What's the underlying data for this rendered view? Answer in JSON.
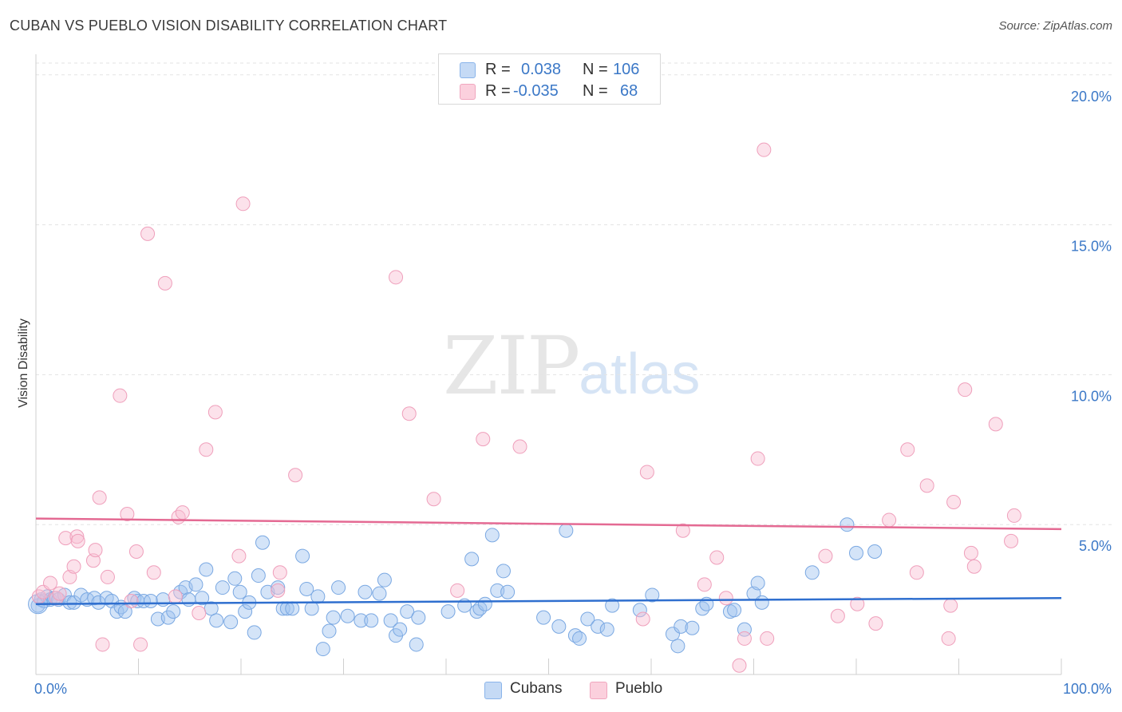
{
  "header": {
    "title": "CUBAN VS PUEBLO VISION DISABILITY CORRELATION CHART",
    "source": "Source: ZipAtlas.com"
  },
  "watermark": {
    "zip": "ZIP",
    "atlas": "atlas"
  },
  "legend": {
    "rows": [
      {
        "r_label": "R =",
        "r_value": "0.038",
        "n_label": "N =",
        "n_value": "106",
        "color": "#8ab4ea",
        "fill": "#c5daf5"
      },
      {
        "r_label": "R =",
        "r_value": "-0.035",
        "n_label": "N =",
        "n_value": "68",
        "color": "#f0a6be",
        "fill": "#fbd0dd"
      }
    ]
  },
  "bottom_legend": {
    "cubans": "Cubans",
    "pueblo": "Pueblo"
  },
  "colors": {
    "blue": "#3b78c7",
    "blue_line": "#2f6fcf",
    "pink_line": "#e46a93",
    "grid": "#e3e3e3"
  },
  "chart_data": {
    "type": "scatter",
    "ylabel": "Vision Disability",
    "xlim": [
      0,
      100
    ],
    "ylim": [
      0,
      20.5
    ],
    "x_tick_labels": [
      "0.0%",
      "100.0%"
    ],
    "y_ticks": [
      5,
      10,
      15,
      20
    ],
    "y_tick_labels": [
      "5.0%",
      "10.0%",
      "15.0%",
      "20.0%"
    ],
    "grid": "horizontal dashed",
    "series": [
      {
        "name": "Cubans",
        "trend": [
          [
            0,
            2.35
          ],
          [
            100,
            2.55
          ]
        ],
        "points": [
          [
            0.2,
            2.3
          ],
          [
            0.5,
            2.5
          ],
          [
            0.8,
            2.45
          ],
          [
            1.1,
            2.6
          ],
          [
            1.4,
            2.5
          ],
          [
            1.8,
            2.55
          ],
          [
            2.2,
            2.5
          ],
          [
            2.8,
            2.65
          ],
          [
            3.3,
            2.4
          ],
          [
            3.7,
            2.4
          ],
          [
            4.4,
            2.65
          ],
          [
            5.0,
            2.5
          ],
          [
            5.7,
            2.55
          ],
          [
            6.1,
            2.4
          ],
          [
            6.9,
            2.55
          ],
          [
            7.4,
            2.45
          ],
          [
            7.9,
            2.1
          ],
          [
            8.3,
            2.25
          ],
          [
            8.7,
            2.1
          ],
          [
            9.6,
            2.55
          ],
          [
            9.9,
            2.45
          ],
          [
            10.5,
            2.45
          ],
          [
            11.2,
            2.45
          ],
          [
            11.9,
            1.85
          ],
          [
            12.4,
            2.5
          ],
          [
            12.9,
            1.9
          ],
          [
            13.4,
            2.1
          ],
          [
            14.1,
            2.75
          ],
          [
            14.6,
            2.9
          ],
          [
            14.9,
            2.5
          ],
          [
            15.6,
            3.0
          ],
          [
            16.2,
            2.55
          ],
          [
            16.6,
            3.5
          ],
          [
            17.1,
            2.2
          ],
          [
            17.6,
            1.8
          ],
          [
            18.2,
            2.9
          ],
          [
            19.0,
            1.75
          ],
          [
            19.4,
            3.2
          ],
          [
            19.9,
            2.75
          ],
          [
            20.4,
            2.1
          ],
          [
            20.8,
            2.4
          ],
          [
            21.3,
            1.4
          ],
          [
            21.7,
            3.3
          ],
          [
            22.1,
            4.4
          ],
          [
            22.6,
            2.75
          ],
          [
            23.6,
            2.9
          ],
          [
            24.1,
            2.2
          ],
          [
            24.5,
            2.2
          ],
          [
            25.0,
            2.2
          ],
          [
            26.0,
            3.95
          ],
          [
            26.4,
            2.85
          ],
          [
            26.9,
            2.2
          ],
          [
            27.5,
            2.6
          ],
          [
            28.0,
            0.85
          ],
          [
            28.6,
            1.45
          ],
          [
            29.0,
            1.9
          ],
          [
            29.5,
            2.9
          ],
          [
            30.4,
            1.95
          ],
          [
            31.7,
            1.8
          ],
          [
            32.1,
            2.75
          ],
          [
            32.7,
            1.8
          ],
          [
            33.5,
            2.7
          ],
          [
            34.0,
            3.15
          ],
          [
            34.6,
            1.8
          ],
          [
            35.1,
            1.3
          ],
          [
            35.5,
            1.5
          ],
          [
            36.2,
            2.1
          ],
          [
            37.1,
            1.0
          ],
          [
            37.3,
            1.9
          ],
          [
            40.2,
            2.1
          ],
          [
            41.8,
            2.3
          ],
          [
            42.5,
            3.85
          ],
          [
            43.0,
            2.1
          ],
          [
            43.3,
            2.2
          ],
          [
            43.8,
            2.35
          ],
          [
            44.5,
            4.65
          ],
          [
            45.0,
            2.8
          ],
          [
            45.6,
            3.45
          ],
          [
            46.0,
            2.75
          ],
          [
            49.5,
            1.9
          ],
          [
            51.0,
            1.6
          ],
          [
            51.7,
            4.8
          ],
          [
            52.6,
            1.3
          ],
          [
            53.0,
            1.2
          ],
          [
            53.8,
            1.85
          ],
          [
            54.8,
            1.6
          ],
          [
            55.7,
            1.5
          ],
          [
            56.2,
            2.3
          ],
          [
            58.9,
            2.15
          ],
          [
            60.1,
            2.65
          ],
          [
            62.1,
            1.35
          ],
          [
            62.6,
            0.95
          ],
          [
            62.9,
            1.6
          ],
          [
            64.0,
            1.55
          ],
          [
            65.0,
            2.2
          ],
          [
            65.4,
            2.35
          ],
          [
            67.7,
            2.1
          ],
          [
            68.1,
            2.15
          ],
          [
            69.1,
            1.5
          ],
          [
            70.0,
            2.7
          ],
          [
            70.4,
            3.05
          ],
          [
            70.8,
            2.4
          ],
          [
            75.7,
            3.4
          ],
          [
            79.1,
            5.0
          ],
          [
            80.0,
            4.05
          ],
          [
            81.8,
            4.1
          ]
        ]
      },
      {
        "name": "Pueblo",
        "trend": [
          [
            0,
            5.2
          ],
          [
            100,
            4.85
          ]
        ],
        "points": [
          [
            0.3,
            2.6
          ],
          [
            0.7,
            2.75
          ],
          [
            1.4,
            3.05
          ],
          [
            2.0,
            2.55
          ],
          [
            2.3,
            2.7
          ],
          [
            2.9,
            4.55
          ],
          [
            3.3,
            3.25
          ],
          [
            3.7,
            3.6
          ],
          [
            4.0,
            4.6
          ],
          [
            4.1,
            4.45
          ],
          [
            5.6,
            3.8
          ],
          [
            5.8,
            4.15
          ],
          [
            6.2,
            5.9
          ],
          [
            6.5,
            1.0
          ],
          [
            7.0,
            3.25
          ],
          [
            8.2,
            9.3
          ],
          [
            8.9,
            5.35
          ],
          [
            9.3,
            2.45
          ],
          [
            9.8,
            4.1
          ],
          [
            10.2,
            1.0
          ],
          [
            10.9,
            14.7
          ],
          [
            11.5,
            3.4
          ],
          [
            12.6,
            13.05
          ],
          [
            13.6,
            2.6
          ],
          [
            13.9,
            5.25
          ],
          [
            14.3,
            5.4
          ],
          [
            15.9,
            2.05
          ],
          [
            16.6,
            7.5
          ],
          [
            17.5,
            8.75
          ],
          [
            19.8,
            3.95
          ],
          [
            20.2,
            15.7
          ],
          [
            23.6,
            2.8
          ],
          [
            23.8,
            3.4
          ],
          [
            25.3,
            6.65
          ],
          [
            35.1,
            13.25
          ],
          [
            36.4,
            8.7
          ],
          [
            38.8,
            5.85
          ],
          [
            41.1,
            2.8
          ],
          [
            43.6,
            7.85
          ],
          [
            47.2,
            7.6
          ],
          [
            59.2,
            1.85
          ],
          [
            59.6,
            6.75
          ],
          [
            63.1,
            4.8
          ],
          [
            65.2,
            3.0
          ],
          [
            66.4,
            3.9
          ],
          [
            67.3,
            2.55
          ],
          [
            68.6,
            0.3
          ],
          [
            69.1,
            1.2
          ],
          [
            70.4,
            7.2
          ],
          [
            71.0,
            17.5
          ],
          [
            71.3,
            1.2
          ],
          [
            77.0,
            3.95
          ],
          [
            78.2,
            1.95
          ],
          [
            80.1,
            2.35
          ],
          [
            81.9,
            1.7
          ],
          [
            83.2,
            5.15
          ],
          [
            85.0,
            7.5
          ],
          [
            85.9,
            3.4
          ],
          [
            86.9,
            6.3
          ],
          [
            89.0,
            1.2
          ],
          [
            89.2,
            2.3
          ],
          [
            89.5,
            5.75
          ],
          [
            90.6,
            9.5
          ],
          [
            91.2,
            4.05
          ],
          [
            91.5,
            3.6
          ],
          [
            93.6,
            8.35
          ],
          [
            95.1,
            4.45
          ],
          [
            95.4,
            5.3
          ]
        ]
      }
    ]
  }
}
